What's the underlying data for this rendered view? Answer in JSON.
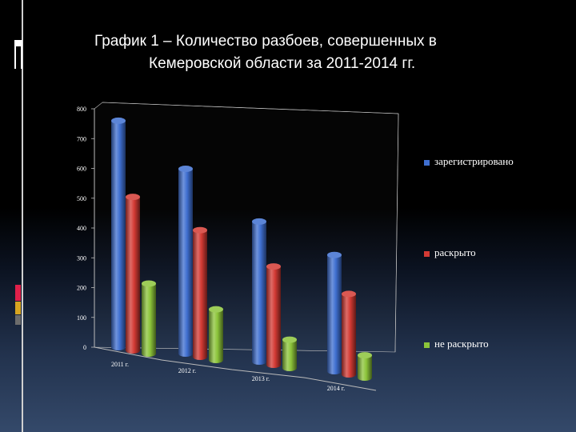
{
  "title_line1": "График 1 – Количество разбоев, совершенных в",
  "title_line2": "Кемеровской области за 2011-2014 гг.",
  "chart_data": {
    "type": "bar",
    "categories": [
      "2011 г.",
      "2012 г.",
      "2013 г.",
      "2014 г."
    ],
    "series": [
      {
        "name": "зарегистрировано",
        "values": [
          760,
          620,
          470,
          390
        ],
        "color": "#3f6fd0"
      },
      {
        "name": "раскрыто",
        "values": [
          515,
          425,
          330,
          270
        ],
        "color": "#d33a34"
      },
      {
        "name": "не раскрыто",
        "values": [
          235,
          170,
          95,
          75
        ],
        "color": "#8cc43a"
      }
    ],
    "y_ticks": [
      "0",
      "100",
      "200",
      "300",
      "400",
      "500",
      "600",
      "700",
      "800"
    ],
    "ylim": [
      0,
      800
    ],
    "grid": false,
    "legend_position": "right"
  }
}
